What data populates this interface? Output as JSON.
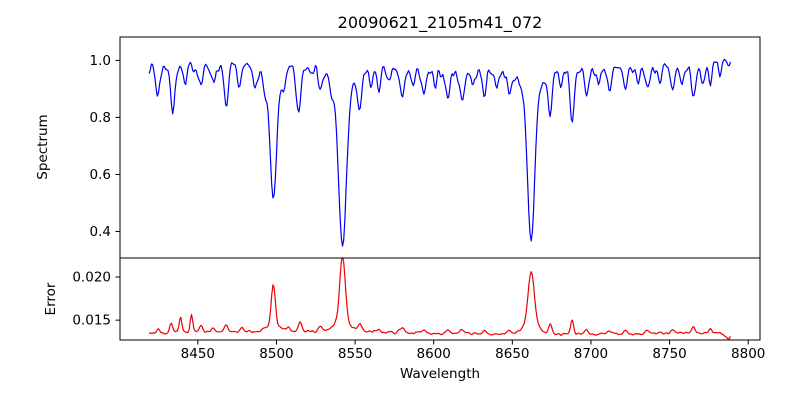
{
  "chart_data": {
    "type": "line",
    "title": "20090621_2105m41_072",
    "xlabel": "Wavelength",
    "xlim": [
      8400.5,
      8807.5
    ],
    "x_data_range": [
      8419,
      8789
    ],
    "x_step": 0.75,
    "xticks": {
      "values": [
        8450,
        8500,
        8550,
        8600,
        8650,
        8700,
        8750,
        8800
      ],
      "labels": [
        "8450",
        "8500",
        "8550",
        "8600",
        "8650",
        "8700",
        "8750",
        "8800"
      ]
    },
    "grid": false,
    "legend": "none",
    "seed": 7,
    "panels": [
      {
        "name": "spectrum",
        "ylabel": "Spectrum",
        "ylim": [
          0.307,
          1.082
        ],
        "yticks": {
          "values": [
            0.4,
            0.6,
            0.8,
            1.0
          ],
          "labels": [
            "0.4",
            "0.6",
            "0.8",
            "1.0"
          ]
        },
        "line_color": "#0000ee",
        "continuum_level": 0.97,
        "continuum_wave_amp": [
          0.01,
          0.006
        ],
        "noise_amp": 0.026,
        "absorption_lines": [
          [
            8424.5,
            0.1,
            1.3
          ],
          [
            8434,
            0.17,
            1.2
          ],
          [
            8442,
            0.07,
            1.1
          ],
          [
            8452,
            0.06,
            1.2
          ],
          [
            8460,
            0.05,
            1.0
          ],
          [
            8468,
            0.14,
            1.3
          ],
          [
            8476,
            0.07,
            1.1
          ],
          [
            8486,
            0.06,
            1.0
          ],
          [
            8493,
            0.05,
            0.9
          ],
          [
            8498,
            0.4,
            2.0
          ],
          [
            8498,
            0.07,
            6.0
          ],
          [
            8505,
            0.05,
            1.0
          ],
          [
            8514,
            0.17,
            1.4
          ],
          [
            8528,
            0.06,
            1.2
          ],
          [
            8535,
            0.05,
            1.0
          ],
          [
            8542,
            0.55,
            2.4
          ],
          [
            8542,
            0.085,
            8.0
          ],
          [
            8553,
            0.12,
            1.3
          ],
          [
            8560,
            0.06,
            1.0
          ],
          [
            8565,
            0.07,
            1.1
          ],
          [
            8572,
            0.05,
            1.0
          ],
          [
            8580,
            0.1,
            1.3
          ],
          [
            8587,
            0.05,
            1.0
          ],
          [
            8594,
            0.08,
            1.2
          ],
          [
            8601,
            0.06,
            1.0
          ],
          [
            8609,
            0.09,
            1.2
          ],
          [
            8618,
            0.1,
            1.3
          ],
          [
            8625,
            0.05,
            1.0
          ],
          [
            8632,
            0.08,
            1.2
          ],
          [
            8640,
            0.06,
            1.0
          ],
          [
            8648,
            0.08,
            1.2
          ],
          [
            8662,
            0.53,
            2.2
          ],
          [
            8662,
            0.08,
            7.0
          ],
          [
            8674,
            0.15,
            1.2
          ],
          [
            8681,
            0.06,
            1.0
          ],
          [
            8688,
            0.19,
            1.3
          ],
          [
            8697,
            0.09,
            1.2
          ],
          [
            8705,
            0.05,
            1.0
          ],
          [
            8712,
            0.07,
            1.1
          ],
          [
            8722,
            0.08,
            1.2
          ],
          [
            8730,
            0.05,
            1.0
          ],
          [
            8736,
            0.07,
            1.1
          ],
          [
            8744,
            0.05,
            1.0
          ],
          [
            8752,
            0.09,
            1.2
          ],
          [
            8758,
            0.06,
            1.0
          ],
          [
            8765,
            0.12,
            1.3
          ],
          [
            8771,
            0.06,
            1.0
          ],
          [
            8776,
            0.06,
            1.0
          ],
          [
            8782,
            0.05,
            1.0
          ]
        ]
      },
      {
        "name": "error",
        "ylabel": "Error",
        "ylim": [
          0.0127,
          0.0222
        ],
        "yticks": {
          "values": [
            0.015,
            0.02
          ],
          "labels": [
            "0.015",
            "0.020"
          ]
        },
        "line_color": "#ee0000",
        "baseline_level": 0.01352,
        "baseline_wave_amp": 0.00018,
        "noise_amp": 0.0002,
        "peaks": [
          [
            8425,
            0.0004,
            1.0
          ],
          [
            8433,
            0.001,
            0.9
          ],
          [
            8439,
            0.0017,
            0.8
          ],
          [
            8446,
            0.002,
            0.8
          ],
          [
            8452,
            0.0008,
            0.9
          ],
          [
            8460,
            0.0004,
            1.0
          ],
          [
            8468,
            0.0009,
            1.0
          ],
          [
            8478,
            0.0005,
            1.0
          ],
          [
            8498,
            0.0047,
            1.3
          ],
          [
            8498,
            0.0007,
            4.5
          ],
          [
            8508,
            0.0004,
            1.0
          ],
          [
            8515,
            0.0011,
            1.0
          ],
          [
            8528,
            0.0004,
            1.2
          ],
          [
            8542,
            0.0076,
            1.7
          ],
          [
            8542,
            0.0011,
            6.0
          ],
          [
            8553,
            0.0007,
            1.2
          ],
          [
            8565,
            0.0004,
            1.2
          ],
          [
            8580,
            0.0005,
            1.5
          ],
          [
            8594,
            0.0003,
            1.2
          ],
          [
            8609,
            0.0004,
            1.4
          ],
          [
            8618,
            0.0004,
            1.2
          ],
          [
            8632,
            0.0003,
            1.2
          ],
          [
            8648,
            0.0004,
            1.2
          ],
          [
            8662,
            0.0062,
            2.0
          ],
          [
            8662,
            0.001,
            6.0
          ],
          [
            8674,
            0.0011,
            1.0
          ],
          [
            8688,
            0.0017,
            0.9
          ],
          [
            8697,
            0.0006,
            1.0
          ],
          [
            8712,
            0.0004,
            1.2
          ],
          [
            8722,
            0.0005,
            1.2
          ],
          [
            8736,
            0.0004,
            1.2
          ],
          [
            8752,
            0.0005,
            1.2
          ],
          [
            8765,
            0.0007,
            1.1
          ],
          [
            8776,
            0.0004,
            1.0
          ],
          [
            8787,
            -0.0007,
            2.5
          ]
        ]
      }
    ],
    "axis_color": "#000000"
  }
}
